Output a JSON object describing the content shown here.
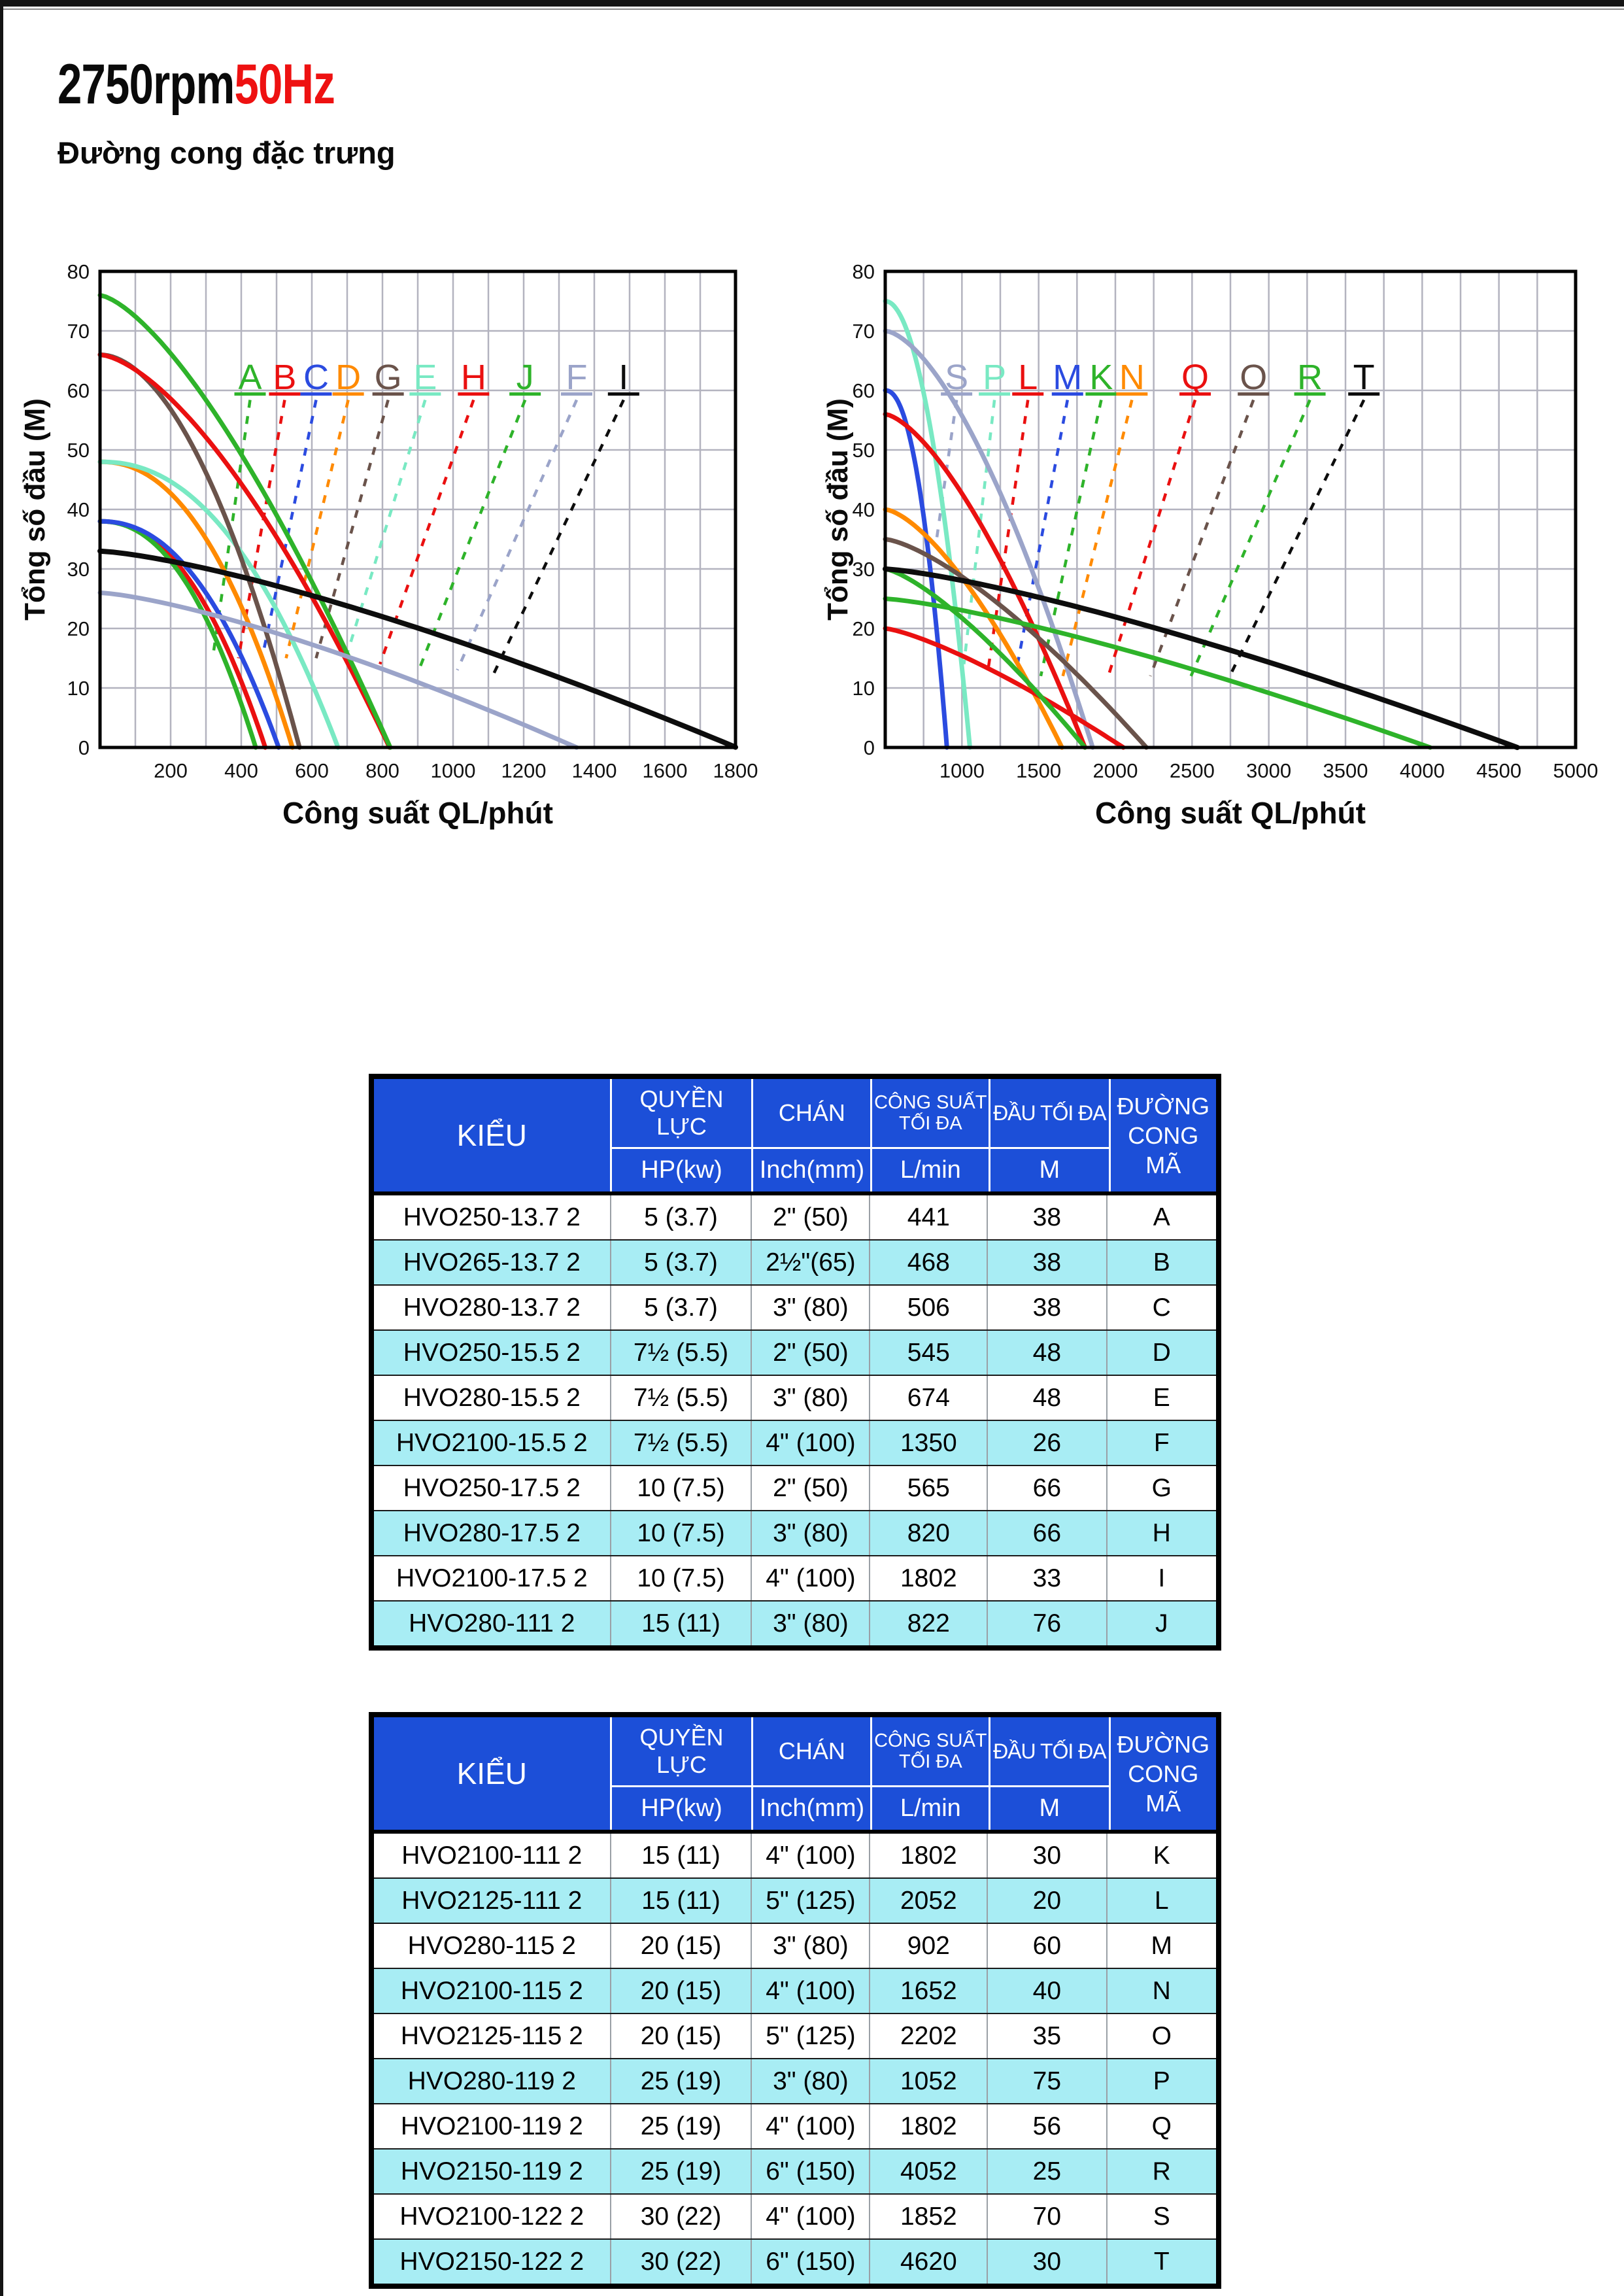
{
  "page": {
    "title": {
      "rpm": "2750rpm",
      "hz": "50Hz"
    },
    "subtitle": "Đường cong đặc trưng"
  },
  "colors": {
    "title_red": "#ee1111",
    "header_blue": "#1c4fd8",
    "row_cyan": "#a8edf4",
    "grid": "#b3b3bf",
    "green": "#2eb32a",
    "red": "#ea1010",
    "blue": "#2b4be0",
    "orange": "#ff8a00",
    "aqua": "#79e9c3",
    "brown": "#6a534b",
    "slate": "#9ba4c9",
    "black": "#0d0d0d"
  },
  "chart_data": [
    {
      "type": "line",
      "title": "",
      "xlabel": "Công suất QL/phút",
      "ylabel": "Tổng số đầu (M)",
      "xlim": [
        0,
        1800
      ],
      "ylim": [
        0,
        80
      ],
      "x_ticks": [
        200,
        400,
        600,
        800,
        1000,
        1200,
        1400,
        1600,
        1800
      ],
      "y_ticks": [
        0,
        10,
        20,
        30,
        40,
        50,
        60,
        70,
        80
      ],
      "x_grid_step": 100,
      "y_grid_step": 10,
      "grid": true,
      "series": [
        {
          "name": "B",
          "color": "#ea1010",
          "max_head_m": 38,
          "max_flow_lmin": 468,
          "exp": 2.2
        },
        {
          "name": "A",
          "color": "#2eb32a",
          "max_head_m": 38,
          "max_flow_lmin": 441,
          "exp": 2.2
        },
        {
          "name": "C",
          "color": "#2b4be0",
          "max_head_m": 38,
          "max_flow_lmin": 506,
          "exp": 2.2
        },
        {
          "name": "D",
          "color": "#ff8a00",
          "max_head_m": 48,
          "max_flow_lmin": 545,
          "exp": 2.2
        },
        {
          "name": "E",
          "color": "#79e9c3",
          "max_head_m": 48,
          "max_flow_lmin": 674,
          "exp": 2.2
        },
        {
          "name": "G",
          "color": "#6a534b",
          "max_head_m": 66,
          "max_flow_lmin": 565,
          "exp": 1.9
        },
        {
          "name": "H",
          "color": "#ea1010",
          "max_head_m": 66,
          "max_flow_lmin": 820,
          "exp": 1.55
        },
        {
          "name": "J",
          "color": "#2eb32a",
          "max_head_m": 76,
          "max_flow_lmin": 822,
          "exp": 1.45
        },
        {
          "name": "F",
          "color": "#9ba4c9",
          "max_head_m": 26,
          "max_flow_lmin": 1350,
          "exp": 1.35
        },
        {
          "name": "I",
          "color": "#0d0d0d",
          "max_head_m": 33,
          "max_flow_lmin": 1802,
          "exp": 1.35
        }
      ],
      "curve_labels": [
        {
          "text": "A",
          "x": 425,
          "y": 62,
          "color": "#2eb32a",
          "leader_to": [
            319,
            15
          ]
        },
        {
          "text": "B",
          "x": 523,
          "y": 62,
          "color": "#ea1010",
          "leader_to": [
            392,
            15
          ]
        },
        {
          "text": "C",
          "x": 612,
          "y": 62,
          "color": "#2b4be0",
          "leader_to": [
            459,
            15
          ]
        },
        {
          "text": "D",
          "x": 703,
          "y": 62,
          "color": "#ff8a00",
          "leader_to": [
            527,
            15
          ]
        },
        {
          "text": "G",
          "x": 816,
          "y": 62,
          "color": "#6a534b",
          "leader_to": [
            612,
            15
          ]
        },
        {
          "text": "E",
          "x": 921,
          "y": 62,
          "color": "#79e9c3",
          "leader_to": [
            691,
            14
          ]
        },
        {
          "text": "H",
          "x": 1058,
          "y": 62,
          "color": "#ea1010",
          "leader_to": [
            793,
            14
          ]
        },
        {
          "text": "J",
          "x": 1204,
          "y": 62,
          "color": "#2eb32a",
          "leader_to": [
            903,
            13
          ]
        },
        {
          "text": "F",
          "x": 1350,
          "y": 62,
          "color": "#9ba4c9",
          "leader_to": [
            1012,
            13
          ]
        },
        {
          "text": "I",
          "x": 1483,
          "y": 62,
          "color": "#0d0d0d",
          "leader_to": [
            1112,
            12
          ]
        }
      ]
    },
    {
      "type": "line",
      "title": "",
      "xlabel": "Công suất QL/phút",
      "ylabel": "Tổng số đầu (M)",
      "xlim": [
        500,
        5000
      ],
      "ylim": [
        0,
        80
      ],
      "x_ticks": [
        1000,
        1500,
        2000,
        2500,
        3000,
        3500,
        4000,
        4500,
        5000
      ],
      "y_ticks": [
        0,
        10,
        20,
        30,
        40,
        50,
        60,
        70,
        80
      ],
      "x_grid_step": 250,
      "y_grid_step": 10,
      "grid": true,
      "series": [
        {
          "name": "M",
          "color": "#2b4be0",
          "max_head_m": 60,
          "max_flow_lmin": 902,
          "exp": 2.2
        },
        {
          "name": "P",
          "color": "#79e9c3",
          "max_head_m": 75,
          "max_flow_lmin": 1052,
          "exp": 2.0
        },
        {
          "name": "S",
          "color": "#9ba4c9",
          "max_head_m": 70,
          "max_flow_lmin": 1852,
          "exp": 1.6
        },
        {
          "name": "Q",
          "color": "#ea1010",
          "max_head_m": 56,
          "max_flow_lmin": 1802,
          "exp": 1.5
        },
        {
          "name": "N",
          "color": "#ff8a00",
          "max_head_m": 40,
          "max_flow_lmin": 1652,
          "exp": 1.5
        },
        {
          "name": "O",
          "color": "#6a534b",
          "max_head_m": 35,
          "max_flow_lmin": 2202,
          "exp": 1.4
        },
        {
          "name": "L",
          "color": "#ea1010",
          "max_head_m": 20,
          "max_flow_lmin": 2052,
          "exp": 1.3
        },
        {
          "name": "K",
          "color": "#2eb32a",
          "max_head_m": 30,
          "max_flow_lmin": 1802,
          "exp": 1.35
        },
        {
          "name": "R",
          "color": "#2eb32a",
          "max_head_m": 25,
          "max_flow_lmin": 4052,
          "exp": 1.3
        },
        {
          "name": "T",
          "color": "#0d0d0d",
          "max_head_m": 30,
          "max_flow_lmin": 4620,
          "exp": 1.3
        }
      ],
      "curve_labels": [
        {
          "text": "S",
          "x": 965,
          "y": 62,
          "color": "#9ba4c9",
          "leader_to": [
            835,
            35
          ]
        },
        {
          "text": "P",
          "x": 1212,
          "y": 62,
          "color": "#79e9c3",
          "leader_to": [
            1013,
            14
          ]
        },
        {
          "text": "L",
          "x": 1430,
          "y": 62,
          "color": "#ea1010",
          "leader_to": [
            1170,
            13
          ]
        },
        {
          "text": "M",
          "x": 1688,
          "y": 62,
          "color": "#2b4be0",
          "leader_to": [
            1355,
            13
          ]
        },
        {
          "text": "K",
          "x": 1908,
          "y": 62,
          "color": "#2eb32a",
          "leader_to": [
            1514,
            12
          ]
        },
        {
          "text": "N",
          "x": 2108,
          "y": 62,
          "color": "#ff8a00",
          "leader_to": [
            1658,
            12
          ]
        },
        {
          "text": "Q",
          "x": 2520,
          "y": 62,
          "color": "#ea1010",
          "leader_to": [
            1954,
            12
          ]
        },
        {
          "text": "O",
          "x": 2900,
          "y": 62,
          "color": "#6a534b",
          "leader_to": [
            2228,
            12
          ]
        },
        {
          "text": "R",
          "x": 3268,
          "y": 62,
          "color": "#2eb32a",
          "leader_to": [
            2493,
            12
          ]
        },
        {
          "text": "T",
          "x": 3620,
          "y": 62,
          "color": "#0d0d0d",
          "leader_to": [
            2746,
            12
          ]
        }
      ]
    }
  ],
  "table_headers": {
    "model": "KIỂU",
    "power": "QUYỀN LỰC",
    "power_unit": "HP(kw)",
    "outlet": "CHÁN",
    "outlet_unit": "Inch(mm)",
    "max_flow_1": "CÔNG SUẤT",
    "max_flow_2": "TỐI ĐA",
    "max_flow_unit": "L/min",
    "max_head": "ĐẦU TỐI ĐA",
    "max_head_unit": "M",
    "curve_1": "ĐƯỜNG",
    "curve_2": "CONG MÃ"
  },
  "tables": [
    {
      "rows": [
        [
          "HVO250-13.7 2",
          "5 (3.7)",
          "2\" (50)",
          "441",
          "38",
          "A"
        ],
        [
          "HVO265-13.7 2",
          "5 (3.7)",
          "2½\"(65)",
          "468",
          "38",
          "B"
        ],
        [
          "HVO280-13.7 2",
          "5 (3.7)",
          "3\" (80)",
          "506",
          "38",
          "C"
        ],
        [
          "HVO250-15.5 2",
          "7½ (5.5)",
          "2\" (50)",
          "545",
          "48",
          "D"
        ],
        [
          "HVO280-15.5 2",
          "7½ (5.5)",
          "3\" (80)",
          "674",
          "48",
          "E"
        ],
        [
          "HVO2100-15.5 2",
          "7½ (5.5)",
          "4\" (100)",
          "1350",
          "26",
          "F"
        ],
        [
          "HVO250-17.5 2",
          "10 (7.5)",
          "2\" (50)",
          "565",
          "66",
          "G"
        ],
        [
          "HVO280-17.5 2",
          "10 (7.5)",
          "3\" (80)",
          "820",
          "66",
          "H"
        ],
        [
          "HVO2100-17.5 2",
          "10 (7.5)",
          "4\" (100)",
          "1802",
          "33",
          "I"
        ],
        [
          "HVO280-111 2",
          "15 (11)",
          "3\" (80)",
          "822",
          "76",
          "J"
        ]
      ]
    },
    {
      "rows": [
        [
          "HVO2100-111 2",
          "15 (11)",
          "4\" (100)",
          "1802",
          "30",
          "K"
        ],
        [
          "HVO2125-111 2",
          "15 (11)",
          "5\" (125)",
          "2052",
          "20",
          "L"
        ],
        [
          "HVO280-115 2",
          "20 (15)",
          "3\" (80)",
          "902",
          "60",
          "M"
        ],
        [
          "HVO2100-115 2",
          "20 (15)",
          "4\" (100)",
          "1652",
          "40",
          "N"
        ],
        [
          "HVO2125-115 2",
          "20 (15)",
          "5\" (125)",
          "2202",
          "35",
          "O"
        ],
        [
          "HVO280-119 2",
          "25 (19)",
          "3\" (80)",
          "1052",
          "75",
          "P"
        ],
        [
          "HVO2100-119 2",
          "25 (19)",
          "4\" (100)",
          "1802",
          "56",
          "Q"
        ],
        [
          "HVO2150-119 2",
          "25 (19)",
          "6\" (150)",
          "4052",
          "25",
          "R"
        ],
        [
          "HVO2100-122 2",
          "30 (22)",
          "4\" (100)",
          "1852",
          "70",
          "S"
        ],
        [
          "HVO2150-122 2",
          "30 (22)",
          "6\" (150)",
          "4620",
          "30",
          "T"
        ]
      ]
    }
  ]
}
